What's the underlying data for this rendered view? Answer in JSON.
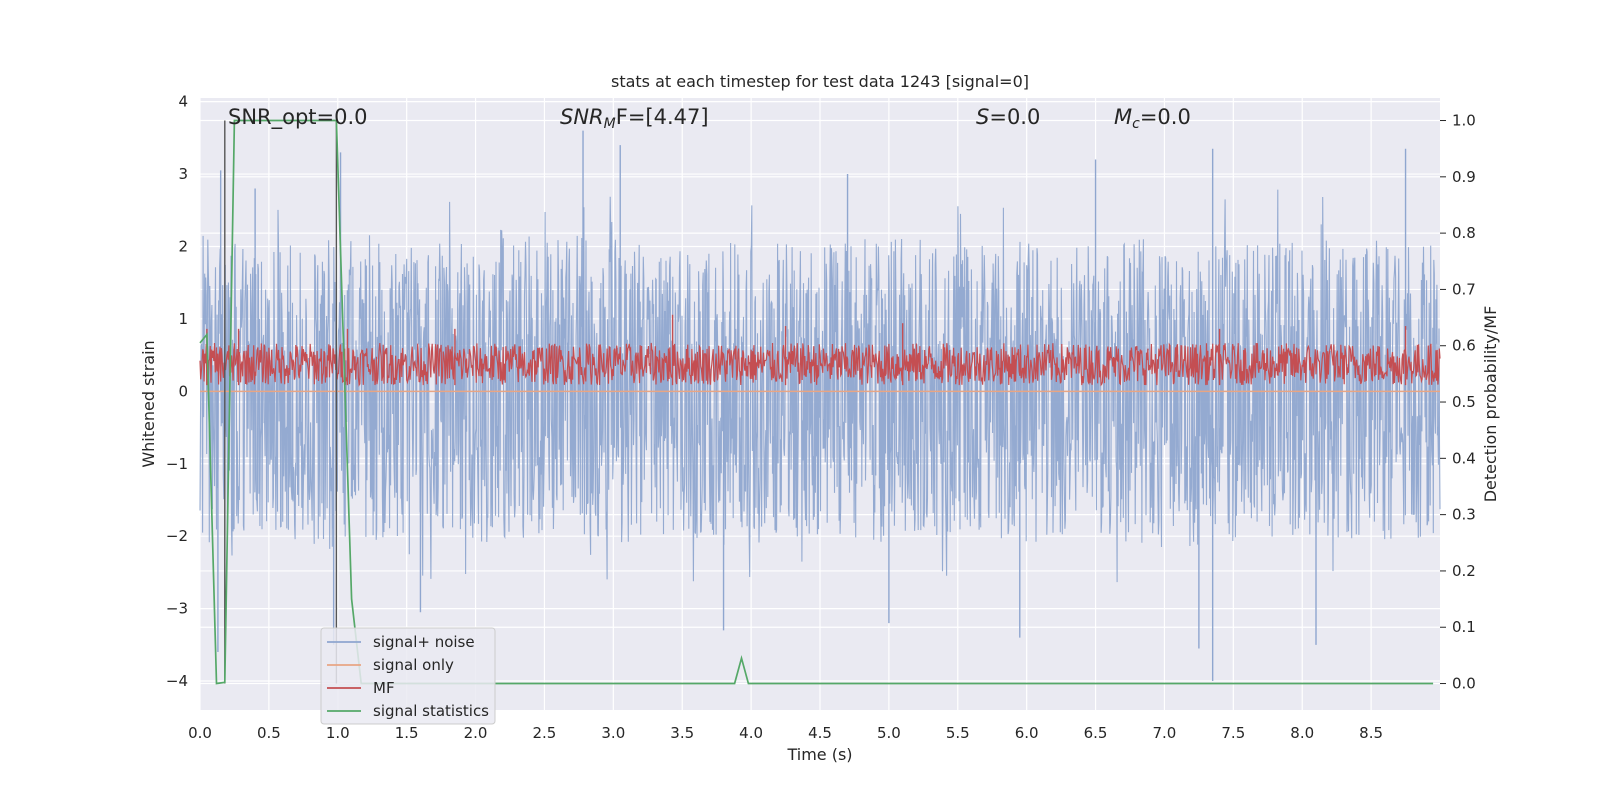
{
  "chart_data": {
    "type": "line",
    "title": "stats at each timestep for test data 1243 [signal=0]",
    "xlabel": "Time (s)",
    "ylabel": "Whitened strain",
    "y2label": "Detection probability/MF",
    "xlim": [
      0.0,
      9.0
    ],
    "ylim": [
      -4.4,
      4.05
    ],
    "y2lim": [
      -0.047,
      1.04
    ],
    "x_ticks": [
      "0.0",
      "0.5",
      "1.0",
      "1.5",
      "2.0",
      "2.5",
      "3.0",
      "3.5",
      "4.0",
      "4.5",
      "5.0",
      "5.5",
      "6.0",
      "6.5",
      "7.0",
      "7.5",
      "8.0",
      "8.5"
    ],
    "y_ticks": [
      "4",
      "3",
      "2",
      "1",
      "0",
      "−1",
      "−2",
      "−3",
      "−4"
    ],
    "y2_ticks": [
      "1.0",
      "0.9",
      "0.8",
      "0.7",
      "0.6",
      "0.5",
      "0.4",
      "0.3",
      "0.2",
      "0.1",
      "0.0"
    ],
    "grid": true,
    "legend_position": "lower-left",
    "annotations": {
      "snr_opt": "SNR_opt=0.0",
      "snr_mf_main": "SNR",
      "snr_mf_sub": "M",
      "snr_mf_tail": "F=[4.47]",
      "s_main": "S",
      "s_tail": "=0.0",
      "mc_main": "M",
      "mc_sub": "c",
      "mc_tail": "=0.0"
    },
    "vlines_x": [
      0.18,
      0.99
    ],
    "series": [
      {
        "name": "signal+ noise",
        "color": "#8fa6cf",
        "axis": "left",
        "envelope_upper": [
          [
            0.0,
            2.2
          ],
          [
            0.5,
            2.0
          ],
          [
            1.0,
            2.1
          ],
          [
            1.5,
            2.0
          ],
          [
            2.0,
            2.1
          ],
          [
            2.5,
            2.2
          ],
          [
            3.0,
            2.1
          ],
          [
            3.5,
            2.0
          ],
          [
            4.0,
            2.1
          ],
          [
            4.5,
            2.0
          ],
          [
            5.0,
            2.2
          ],
          [
            5.5,
            2.0
          ],
          [
            6.0,
            2.1
          ],
          [
            6.5,
            2.0
          ],
          [
            7.0,
            2.2
          ],
          [
            7.5,
            2.0
          ],
          [
            8.0,
            2.1
          ],
          [
            8.5,
            2.1
          ],
          [
            9.0,
            2.0
          ]
        ],
        "envelope_lower": [
          [
            0.0,
            -2.1
          ],
          [
            0.5,
            -2.0
          ],
          [
            1.0,
            -2.2
          ],
          [
            1.5,
            -2.0
          ],
          [
            2.0,
            -2.1
          ],
          [
            2.5,
            -2.0
          ],
          [
            3.0,
            -2.1
          ],
          [
            3.5,
            -2.0
          ],
          [
            4.0,
            -2.2
          ],
          [
            4.5,
            -2.0
          ],
          [
            5.0,
            -2.1
          ],
          [
            5.5,
            -2.0
          ],
          [
            6.0,
            -2.1
          ],
          [
            6.5,
            -2.0
          ],
          [
            7.0,
            -2.2
          ],
          [
            7.5,
            -2.1
          ],
          [
            8.0,
            -2.0
          ],
          [
            8.5,
            -2.1
          ],
          [
            9.0,
            -2.0
          ]
        ],
        "peaks": [
          [
            0.15,
            3.05
          ],
          [
            0.4,
            2.8
          ],
          [
            1.02,
            3.3
          ],
          [
            2.78,
            3.6
          ],
          [
            3.05,
            3.4
          ],
          [
            4.7,
            3.0
          ],
          [
            6.5,
            3.2
          ],
          [
            7.35,
            3.35
          ],
          [
            8.75,
            3.35
          ]
        ],
        "troughs": [
          [
            0.13,
            -3.6
          ],
          [
            0.97,
            -3.5
          ],
          [
            1.6,
            -3.05
          ],
          [
            3.8,
            -3.3
          ],
          [
            5.0,
            -3.2
          ],
          [
            5.95,
            -3.4
          ],
          [
            7.35,
            -4.0
          ],
          [
            7.25,
            -3.55
          ],
          [
            8.1,
            -3.5
          ]
        ]
      },
      {
        "name": "signal only",
        "color": "#e8a584",
        "axis": "left",
        "points": [
          [
            0.0,
            0.0
          ],
          [
            9.0,
            0.0
          ]
        ]
      },
      {
        "name": "MF",
        "color": "#c44e52",
        "axis": "right",
        "band_upper": 0.605,
        "band_lower": 0.53,
        "peaks": [
          [
            0.05,
            0.63
          ],
          [
            0.28,
            0.63
          ],
          [
            1.07,
            0.63
          ],
          [
            1.85,
            0.63
          ],
          [
            3.43,
            0.655
          ],
          [
            4.25,
            0.635
          ],
          [
            5.1,
            0.64
          ],
          [
            7.4,
            0.63
          ],
          [
            8.75,
            0.635
          ]
        ]
      },
      {
        "name": "signal statistics",
        "color": "#55a868",
        "axis": "right",
        "points": [
          [
            0.0,
            0.605
          ],
          [
            0.05,
            0.62
          ],
          [
            0.12,
            0.0
          ],
          [
            0.18,
            0.002
          ],
          [
            0.25,
            1.0
          ],
          [
            0.99,
            1.0
          ],
          [
            1.1,
            0.15
          ],
          [
            1.17,
            0.0
          ],
          [
            3.88,
            0.0
          ],
          [
            3.93,
            0.045
          ],
          [
            3.98,
            0.0
          ],
          [
            8.95,
            0.0
          ]
        ]
      }
    ]
  }
}
